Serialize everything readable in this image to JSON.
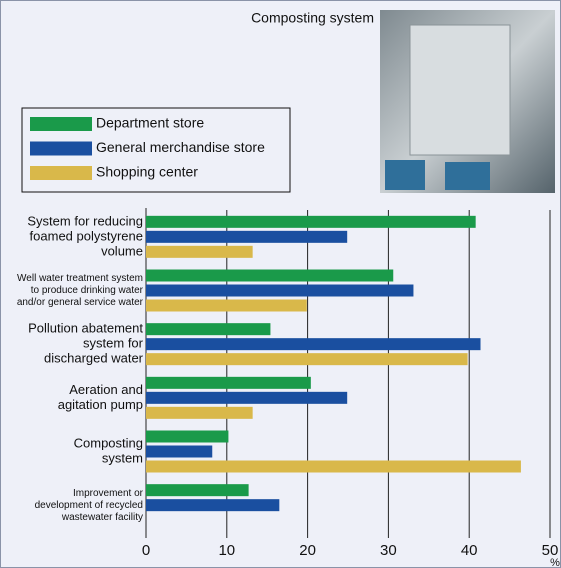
{
  "chart_data": {
    "type": "hbar",
    "annotation": "Composting system",
    "categories": [
      [
        "System for reducing",
        "foamed polystyrene",
        "volume"
      ],
      [
        "Well water treatment system",
        "to produce drinking water",
        "and/or general service water"
      ],
      [
        "Pollution abatement",
        "system for",
        "discharged water"
      ],
      [
        "Aeration and",
        "agitation pump"
      ],
      [
        "Composting",
        "system"
      ],
      [
        "Improvement or",
        "development of recycled",
        "wastewater facility"
      ]
    ],
    "series": [
      {
        "name": "Department store",
        "color": "#1a9a4a",
        "values": [
          40.8,
          30.6,
          15.4,
          20.4,
          10.2,
          12.7
        ]
      },
      {
        "name": "General merchandise store",
        "color": "#1a4fa0",
        "values": [
          24.9,
          33.1,
          41.4,
          24.9,
          8.2,
          16.5
        ]
      },
      {
        "name": "Shopping center",
        "color": "#d9b84a",
        "values": [
          13.2,
          19.9,
          39.8,
          13.2,
          46.4,
          null
        ]
      }
    ],
    "xlabel": "%",
    "xlim": [
      0,
      50
    ],
    "xticks": [
      0,
      10,
      20,
      30,
      40,
      50
    ],
    "grid": true
  }
}
